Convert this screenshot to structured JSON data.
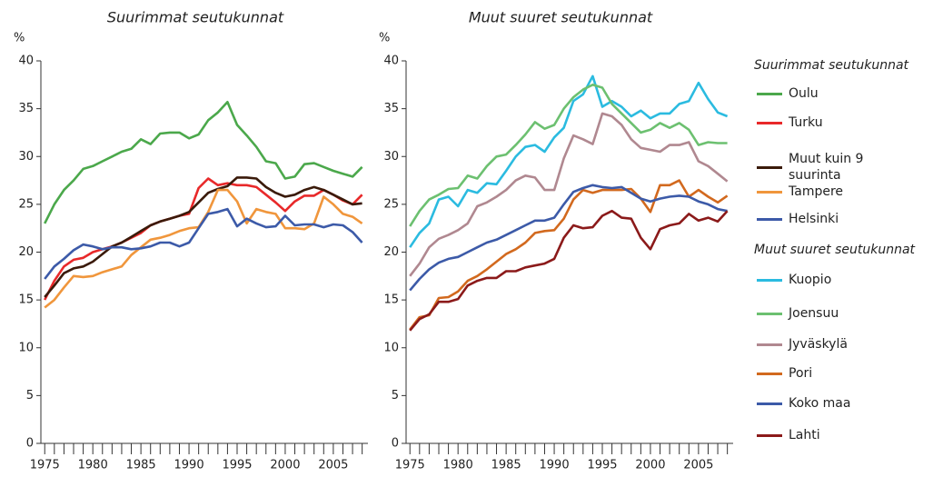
{
  "chart_data": [
    {
      "type": "line",
      "title": "Suurimmat seutukunnat",
      "ylabel": "%",
      "x": [
        1975,
        1976,
        1977,
        1978,
        1979,
        1980,
        1981,
        1982,
        1983,
        1984,
        1985,
        1986,
        1987,
        1988,
        1989,
        1990,
        1991,
        1992,
        1993,
        1994,
        1995,
        1996,
        1997,
        1998,
        1999,
        2000,
        2001,
        2002,
        2003,
        2004,
        2005,
        2006,
        2007,
        2008
      ],
      "xlim": [
        1974.6,
        2008.6
      ],
      "xticks": [
        1975,
        1980,
        1985,
        1990,
        1995,
        2000,
        2005
      ],
      "ylim": [
        0,
        40
      ],
      "yticks": [
        0,
        5,
        10,
        15,
        20,
        25,
        30,
        35,
        40
      ],
      "series": [
        {
          "name": "Oulu",
          "color": "#4ba84b",
          "values": [
            23,
            25,
            26.5,
            27.5,
            28.7,
            29,
            29.5,
            30,
            30.5,
            30.8,
            31.8,
            31.3,
            32.4,
            32.5,
            32.5,
            31.9,
            32.3,
            33.8,
            34.6,
            35.7,
            33.3,
            32.2,
            31,
            29.5,
            29.3,
            27.7,
            27.9,
            29.2,
            29.3,
            28.9,
            28.5,
            28.2,
            27.9,
            28.9
          ]
        },
        {
          "name": "Turku",
          "color": "#e8292a",
          "values": [
            15,
            17,
            18.5,
            19.2,
            19.4,
            20,
            20.3,
            20.6,
            21,
            21.5,
            22,
            22.8,
            23.2,
            23.5,
            23.8,
            24,
            26.7,
            27.7,
            27,
            27.2,
            27,
            27,
            26.8,
            26,
            25.2,
            24.3,
            25.3,
            25.9,
            25.9,
            26.5,
            26,
            25.4,
            25,
            26
          ]
        },
        {
          "name": "Muut kuin 9 suurinta",
          "color": "#3a1a0a",
          "values": [
            15.3,
            16.5,
            17.8,
            18.3,
            18.5,
            19,
            19.8,
            20.6,
            21,
            21.6,
            22.2,
            22.8,
            23.2,
            23.5,
            23.8,
            24.2,
            25.2,
            26.2,
            26.6,
            26.9,
            27.8,
            27.8,
            27.7,
            26.8,
            26.2,
            25.8,
            26,
            26.5,
            26.8,
            26.5,
            26,
            25.5,
            25,
            25.1
          ]
        },
        {
          "name": "Tampere",
          "color": "#f0963c",
          "values": [
            14.2,
            15,
            16.3,
            17.5,
            17.4,
            17.5,
            17.9,
            18.2,
            18.5,
            19.7,
            20.5,
            21.3,
            21.5,
            21.8,
            22.2,
            22.5,
            22.6,
            24.2,
            26.5,
            26.5,
            25.3,
            23,
            24.5,
            24.2,
            24,
            22.5,
            22.5,
            22.4,
            23,
            25.8,
            25,
            24,
            23.7,
            23
          ]
        },
        {
          "name": "Helsinki",
          "color": "#3c5aa8",
          "values": [
            17.2,
            18.5,
            19.3,
            20.2,
            20.8,
            20.6,
            20.3,
            20.5,
            20.5,
            20.3,
            20.4,
            20.6,
            21,
            21,
            20.6,
            21,
            22.5,
            24,
            24.2,
            24.5,
            22.7,
            23.5,
            23,
            22.6,
            22.7,
            23.8,
            22.8,
            22.9,
            22.9,
            22.6,
            22.9,
            22.8,
            22.1,
            21
          ]
        }
      ]
    },
    {
      "type": "line",
      "title": "Muut suuret seutukunnat",
      "ylabel": "%",
      "x": [
        1975,
        1976,
        1977,
        1978,
        1979,
        1980,
        1981,
        1982,
        1983,
        1984,
        1985,
        1986,
        1987,
        1988,
        1989,
        1990,
        1991,
        1992,
        1993,
        1994,
        1995,
        1996,
        1997,
        1998,
        1999,
        2000,
        2001,
        2002,
        2003,
        2004,
        2005,
        2006,
        2007,
        2008
      ],
      "xlim": [
        1974.6,
        2008.6
      ],
      "xticks": [
        1975,
        1980,
        1985,
        1990,
        1995,
        2000,
        2005
      ],
      "ylim": [
        0,
        40
      ],
      "yticks": [
        0,
        5,
        10,
        15,
        20,
        25,
        30,
        35,
        40
      ],
      "series": [
        {
          "name": "Kuopio",
          "color": "#2bbbe0",
          "values": [
            20.5,
            22,
            23,
            25.5,
            25.8,
            24.8,
            26.5,
            26.2,
            27.2,
            27.1,
            28.5,
            30,
            31,
            31.2,
            30.5,
            32,
            33,
            35.8,
            36.5,
            38.4,
            35.2,
            35.8,
            35.2,
            34.2,
            34.8,
            34,
            34.5,
            34.5,
            35.5,
            35.8,
            37.7,
            36,
            34.6,
            34.2
          ]
        },
        {
          "name": "Joensuu",
          "color": "#6cc070",
          "values": [
            22.7,
            24.3,
            25.5,
            26,
            26.6,
            26.7,
            28,
            27.7,
            29,
            30,
            30.2,
            31.2,
            32.3,
            33.6,
            32.9,
            33.3,
            35,
            36.2,
            37,
            37.5,
            37.2,
            35.5,
            34.5,
            33.5,
            32.5,
            32.8,
            33.5,
            33,
            33.5,
            32.8,
            31.2,
            31.5,
            31.4,
            31.4
          ]
        },
        {
          "name": "Jyväskylä",
          "color": "#b08890",
          "values": [
            17.5,
            18.8,
            20.5,
            21.4,
            21.8,
            22.3,
            23,
            24.8,
            25.2,
            25.8,
            26.5,
            27.5,
            28,
            27.8,
            26.5,
            26.5,
            29.8,
            32.2,
            31.8,
            31.3,
            34.5,
            34.2,
            33.3,
            31.8,
            30.9,
            30.7,
            30.5,
            31.2,
            31.2,
            31.5,
            29.5,
            29,
            28.2,
            27.4
          ]
        },
        {
          "name": "Pori",
          "color": "#d2691e",
          "values": [
            11.9,
            13.2,
            13.4,
            15.2,
            15.3,
            15.9,
            17,
            17.5,
            18.2,
            19,
            19.8,
            20.3,
            21,
            22,
            22.2,
            22.3,
            23.5,
            25.5,
            26.5,
            26.2,
            26.5,
            26.5,
            26.5,
            26.6,
            25.6,
            24.2,
            27,
            27,
            27.5,
            25.8,
            26.5,
            25.8,
            25.2,
            25.9
          ]
        },
        {
          "name": "Koko maa",
          "color": "#3c5aa8",
          "values": [
            16,
            17.2,
            18.2,
            18.9,
            19.3,
            19.5,
            20,
            20.5,
            21,
            21.3,
            21.8,
            22.3,
            22.8,
            23.3,
            23.3,
            23.6,
            25,
            26.3,
            26.7,
            27,
            26.8,
            26.7,
            26.8,
            26.2,
            25.6,
            25.3,
            25.6,
            25.8,
            25.9,
            25.8,
            25.3,
            25,
            24.5,
            24.3
          ]
        },
        {
          "name": "Lahti",
          "color": "#8b1a1a",
          "values": [
            11.8,
            13,
            13.5,
            14.8,
            14.8,
            15.1,
            16.5,
            17,
            17.3,
            17.3,
            18,
            18,
            18.4,
            18.6,
            18.8,
            19.3,
            21.5,
            22.8,
            22.5,
            22.6,
            23.8,
            24.3,
            23.6,
            23.5,
            21.5,
            20.3,
            22.4,
            22.8,
            23,
            24,
            23.3,
            23.6,
            23.2,
            24.3
          ]
        }
      ]
    }
  ]
}
